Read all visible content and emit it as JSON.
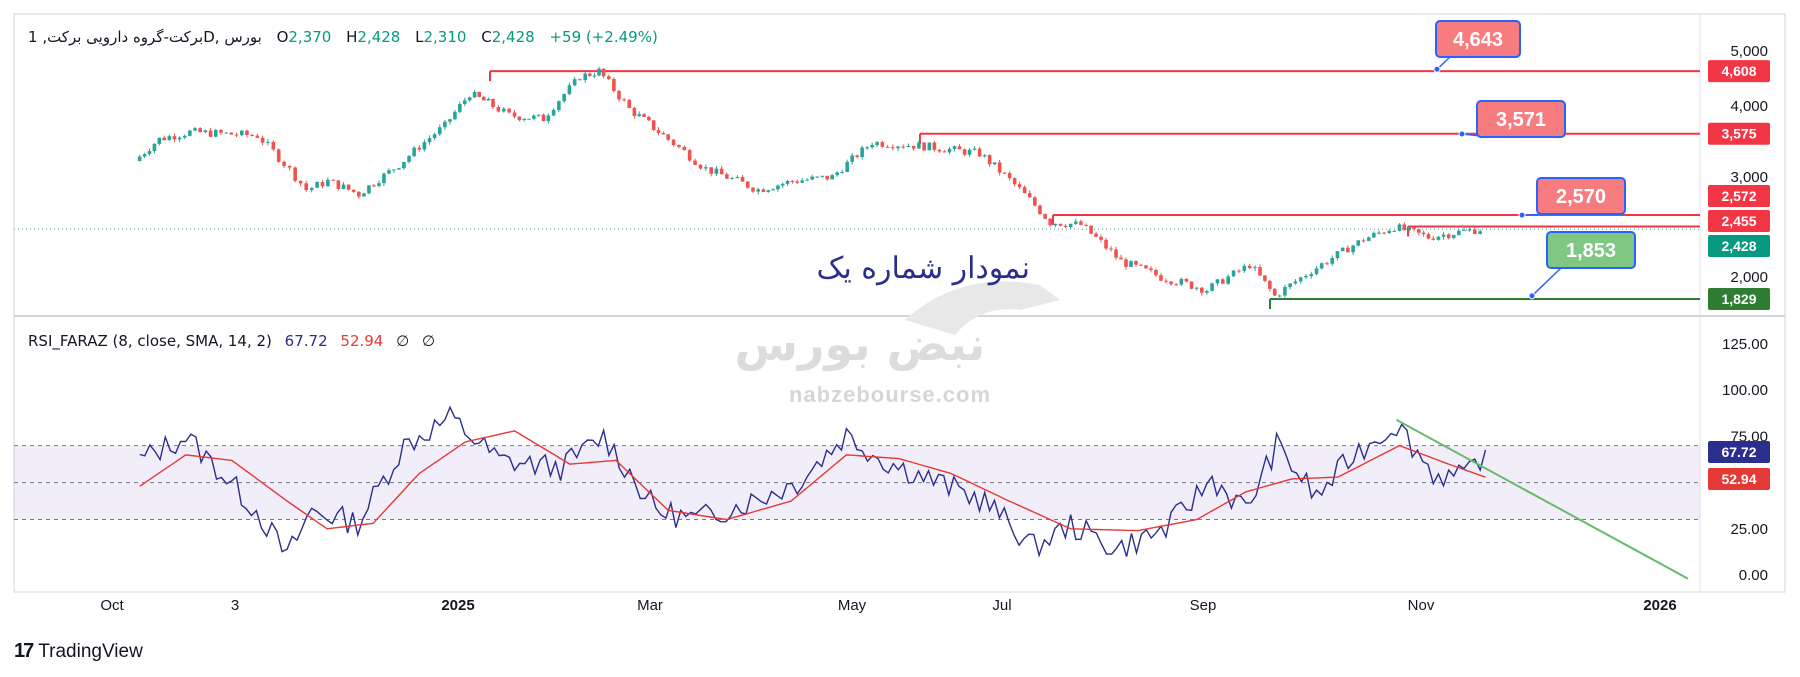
{
  "header": {
    "symbol": "برکت-گروه دارویی برکت, 1",
    "interval_exchange": "D, بورس",
    "o_label": "O",
    "o": "2,370",
    "h_label": "H",
    "h": "2,428",
    "l_label": "L",
    "l": "2,310",
    "c_label": "C",
    "c": "2,428",
    "change": "+59 (+2.49%)"
  },
  "indicator": {
    "name": "RSI_FARAZ (8, close, SMA, 14, 2)",
    "value1": "67.72",
    "value2": "52.94",
    "nan1": "∅",
    "nan2": "∅"
  },
  "annotation_text": "نمودار شماره یک",
  "watermark": {
    "brand": "نبض بورس",
    "url": "nabzebourse.com"
  },
  "footer": {
    "logo_mark": "17",
    "logo_text": "TradingView"
  },
  "colors": {
    "up": "#26a69a",
    "down": "#ef5350",
    "resistance": "#f23645",
    "support": "#2e7d32",
    "rsi": "#2a2e8c",
    "rsi_ma": "#e53935",
    "trend": "#66bb6a",
    "label_red": "#f77c80",
    "label_green": "#81c784"
  },
  "chart_data": [
    {
      "type": "candlestick",
      "title": "",
      "x_ticks": [
        "Oct",
        "3",
        "2025",
        "Mar",
        "May",
        "Jul",
        "Sep",
        "Nov",
        "2026"
      ],
      "y_ticks": [
        "5,000",
        "4,000",
        "3,000",
        "2,000"
      ],
      "ylim": [
        1650,
        5550
      ],
      "scale": "log",
      "price_levels": [
        {
          "value": 4608,
          "label": "4,608",
          "kind": "resistance"
        },
        {
          "value": 3575,
          "label": "3,575",
          "kind": "resistance"
        },
        {
          "value": 2572,
          "label": "2,572",
          "kind": "resistance"
        },
        {
          "value": 2455,
          "label": "2,455",
          "kind": "resistance"
        },
        {
          "value": 2428,
          "label": "2,428",
          "kind": "last_price"
        },
        {
          "value": 1829,
          "label": "1,829",
          "kind": "support"
        }
      ],
      "callouts": [
        {
          "label": "4,643",
          "points_to": 4643
        },
        {
          "label": "3,571",
          "points_to": 3571
        },
        {
          "label": "2,570",
          "points_to": 2570
        },
        {
          "label": "1,853",
          "points_to": 1853
        }
      ],
      "close_path": [
        [
          "2024-09-10",
          3200
        ],
        [
          "2024-09-18",
          3500
        ],
        [
          "2024-09-28",
          3600
        ],
        [
          "2024-10-20",
          3550
        ],
        [
          "2024-10-27",
          3250
        ],
        [
          "2024-11-05",
          2850
        ],
        [
          "2024-11-12",
          2950
        ],
        [
          "2024-11-22",
          2800
        ],
        [
          "2024-12-05",
          3150
        ],
        [
          "2024-12-20",
          3700
        ],
        [
          "2024-12-28",
          4200
        ],
        [
          "2025-01-03",
          4050
        ],
        [
          "2025-01-10",
          3850
        ],
        [
          "2025-01-21",
          3800
        ],
        [
          "2025-02-02",
          4500
        ],
        [
          "2025-02-08",
          4608
        ],
        [
          "2025-02-18",
          3950
        ],
        [
          "2025-03-01",
          3550
        ],
        [
          "2025-03-15",
          3100
        ],
        [
          "2025-04-01",
          2850
        ],
        [
          "2025-04-12",
          2950
        ],
        [
          "2025-04-25",
          3000
        ],
        [
          "2025-05-08",
          3450
        ],
        [
          "2025-05-25",
          3400
        ],
        [
          "2025-06-12",
          3300
        ],
        [
          "2025-06-25",
          2850
        ],
        [
          "2025-07-05",
          2500
        ],
        [
          "2025-07-15",
          2470
        ],
        [
          "2025-07-28",
          2130
        ],
        [
          "2025-08-10",
          2000
        ],
        [
          "2025-08-25",
          1900
        ],
        [
          "2025-09-08",
          2100
        ],
        [
          "2025-09-16",
          1850
        ],
        [
          "2025-09-28",
          2050
        ],
        [
          "2025-10-15",
          2330
        ],
        [
          "2025-10-25",
          2450
        ],
        [
          "2025-11-05",
          2350
        ],
        [
          "2025-11-15",
          2400
        ],
        [
          "2025-11-22",
          2428
        ]
      ]
    },
    {
      "type": "line",
      "title": "RSI_FARAZ (8, close, SMA, 14, 2)",
      "y_ticks": [
        "125.00",
        "100.00",
        "75.00",
        "25.00",
        "0.00"
      ],
      "ylim": [
        -5,
        130
      ],
      "bands": [
        70,
        50,
        30
      ],
      "series": [
        {
          "name": "",
          "values": [
            [
              "2024-09-10",
              62
            ],
            [
              "2024-09-25",
              75
            ],
            [
              "2024-10-05",
              58
            ],
            [
              "2024-10-18",
              35
            ],
            [
              "2024-10-28",
              10
            ],
            [
              "2024-11-05",
              35
            ],
            [
              "2024-11-20",
              28
            ],
            [
              "2024-12-05",
              70
            ],
            [
              "2024-12-20",
              85
            ],
            [
              "2025-01-05",
              62
            ],
            [
              "2025-01-25",
              58
            ],
            [
              "2025-02-08",
              75
            ],
            [
              "2025-02-25",
              35
            ],
            [
              "2025-03-10",
              30
            ],
            [
              "2025-03-28",
              40
            ],
            [
              "2025-04-12",
              50
            ],
            [
              "2025-04-28",
              76
            ],
            [
              "2025-05-10",
              62
            ],
            [
              "2025-05-28",
              50
            ],
            [
              "2025-06-12",
              40
            ],
            [
              "2025-06-28",
              15
            ],
            [
              "2025-07-10",
              27
            ],
            [
              "2025-07-25",
              14
            ],
            [
              "2025-08-10",
              25
            ],
            [
              "2025-08-25",
              52
            ],
            [
              "2025-09-05",
              35
            ],
            [
              "2025-09-15",
              70
            ],
            [
              "2025-09-28",
              42
            ],
            [
              "2025-10-10",
              65
            ],
            [
              "2025-10-24",
              82
            ],
            [
              "2025-11-05",
              55
            ],
            [
              "2025-11-15",
              52
            ],
            [
              "2025-11-22",
              67.72
            ]
          ]
        },
        {
          "name": "",
          "values": [
            [
              "2024-09-10",
              48
            ],
            [
              "2024-09-25",
              65
            ],
            [
              "2024-10-10",
              62
            ],
            [
              "2024-10-28",
              40
            ],
            [
              "2024-11-10",
              25
            ],
            [
              "2024-11-25",
              28
            ],
            [
              "2024-12-10",
              55
            ],
            [
              "2024-12-25",
              72
            ],
            [
              "2025-01-10",
              78
            ],
            [
              "2025-01-28",
              60
            ],
            [
              "2025-02-12",
              62
            ],
            [
              "2025-03-01",
              35
            ],
            [
              "2025-03-20",
              30
            ],
            [
              "2025-04-10",
              40
            ],
            [
              "2025-04-28",
              65
            ],
            [
              "2025-05-15",
              63
            ],
            [
              "2025-06-01",
              55
            ],
            [
              "2025-06-20",
              40
            ],
            [
              "2025-07-10",
              25
            ],
            [
              "2025-08-01",
              24
            ],
            [
              "2025-08-20",
              30
            ],
            [
              "2025-09-05",
              45
            ],
            [
              "2025-09-20",
              52
            ],
            [
              "2025-10-05",
              53
            ],
            [
              "2025-10-25",
              70
            ],
            [
              "2025-11-10",
              60
            ],
            [
              "2025-11-22",
              52.94
            ]
          ]
        }
      ]
    }
  ]
}
